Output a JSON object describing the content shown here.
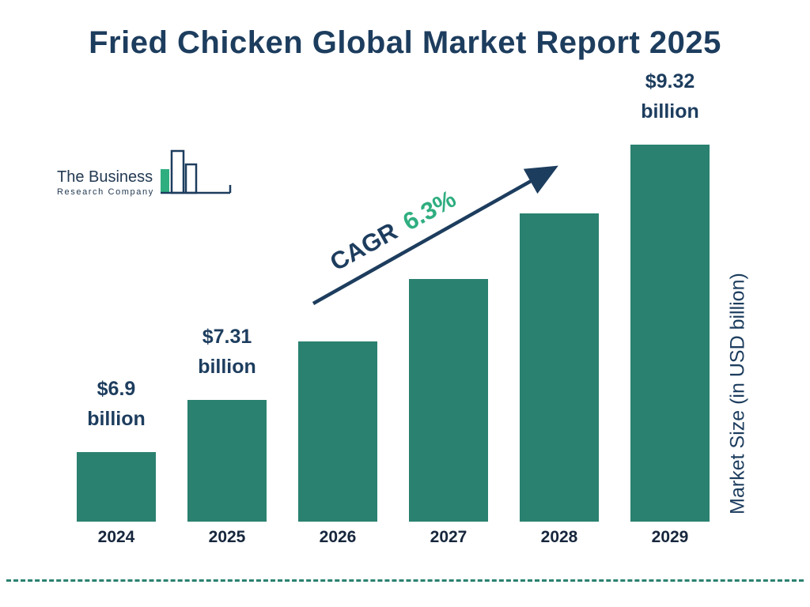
{
  "title": "Fried Chicken Global Market Report 2025",
  "logo": {
    "line1": "The Business",
    "line2": "Research Company"
  },
  "cagr": {
    "label": "CAGR",
    "value": "6.3%"
  },
  "ylabel": "Market Size (in USD billion)",
  "colors": {
    "navy": "#1d3d5e",
    "bar": "#2a8170",
    "green": "#2fae80",
    "text_dark": "#16263c",
    "dash": "#2a8170"
  },
  "chart_data": {
    "type": "bar",
    "title": "Fried Chicken Global Market Report 2025",
    "categories": [
      "2024",
      "2025",
      "2026",
      "2027",
      "2028",
      "2029"
    ],
    "values": [
      6.9,
      7.31,
      7.77,
      8.26,
      8.78,
      9.32
    ],
    "ylabel": "Market Size (in USD billion)",
    "ylim_implied": [
      6.35,
      9.32
    ],
    "legend": "none",
    "grid": false,
    "annotations": [
      {
        "index": 0,
        "lines": [
          "$6.9",
          "billion"
        ]
      },
      {
        "index": 1,
        "lines": [
          "$7.31",
          "billion"
        ]
      },
      {
        "index": 5,
        "lines": [
          "$9.32",
          "billion"
        ]
      }
    ],
    "cagr_annotation": {
      "label": "CAGR",
      "value": "6.3%"
    }
  }
}
